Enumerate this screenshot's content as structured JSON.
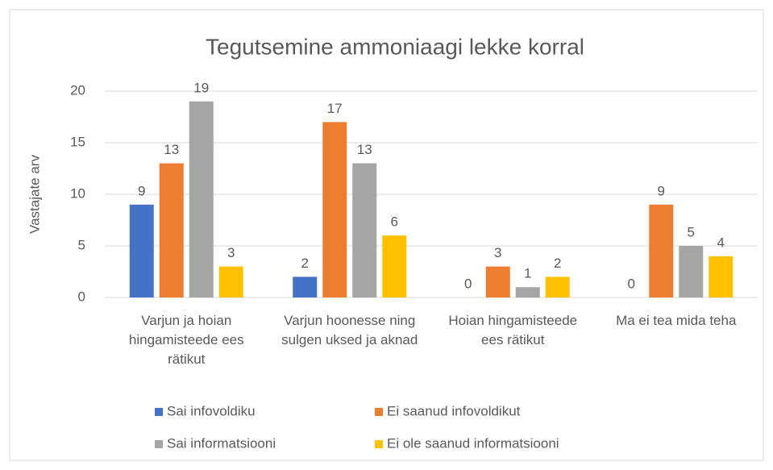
{
  "chart_data": {
    "type": "bar",
    "title": "Tegutsemine ammoniaagi lekke korral",
    "y_label": "Vastajate arv",
    "categories": [
      "Varjun ja hoian hingamisteede ees rätikut",
      "Varjun hoonesse ning sulgen uksed ja aknad",
      "Hoian hingamisteede ees rätikut",
      "Ma ei tea mida teha"
    ],
    "series": [
      {
        "name": "Sai infovoldiku",
        "color": "#4472c4",
        "values": [
          9,
          2,
          0,
          0
        ]
      },
      {
        "name": "Ei saanud infovoldikut",
        "color": "#ed7d31",
        "values": [
          13,
          17,
          3,
          9
        ]
      },
      {
        "name": "Sai informatsiooni",
        "color": "#a5a5a5",
        "values": [
          19,
          13,
          1,
          5
        ]
      },
      {
        "name": "Ei ole saanud informatsiooni",
        "color": "#ffc000",
        "values": [
          3,
          6,
          2,
          4
        ]
      }
    ],
    "ylim": [
      0,
      20
    ],
    "yticks": [
      0,
      5,
      10,
      15,
      20
    ],
    "grid": true,
    "legend": "bottom"
  }
}
